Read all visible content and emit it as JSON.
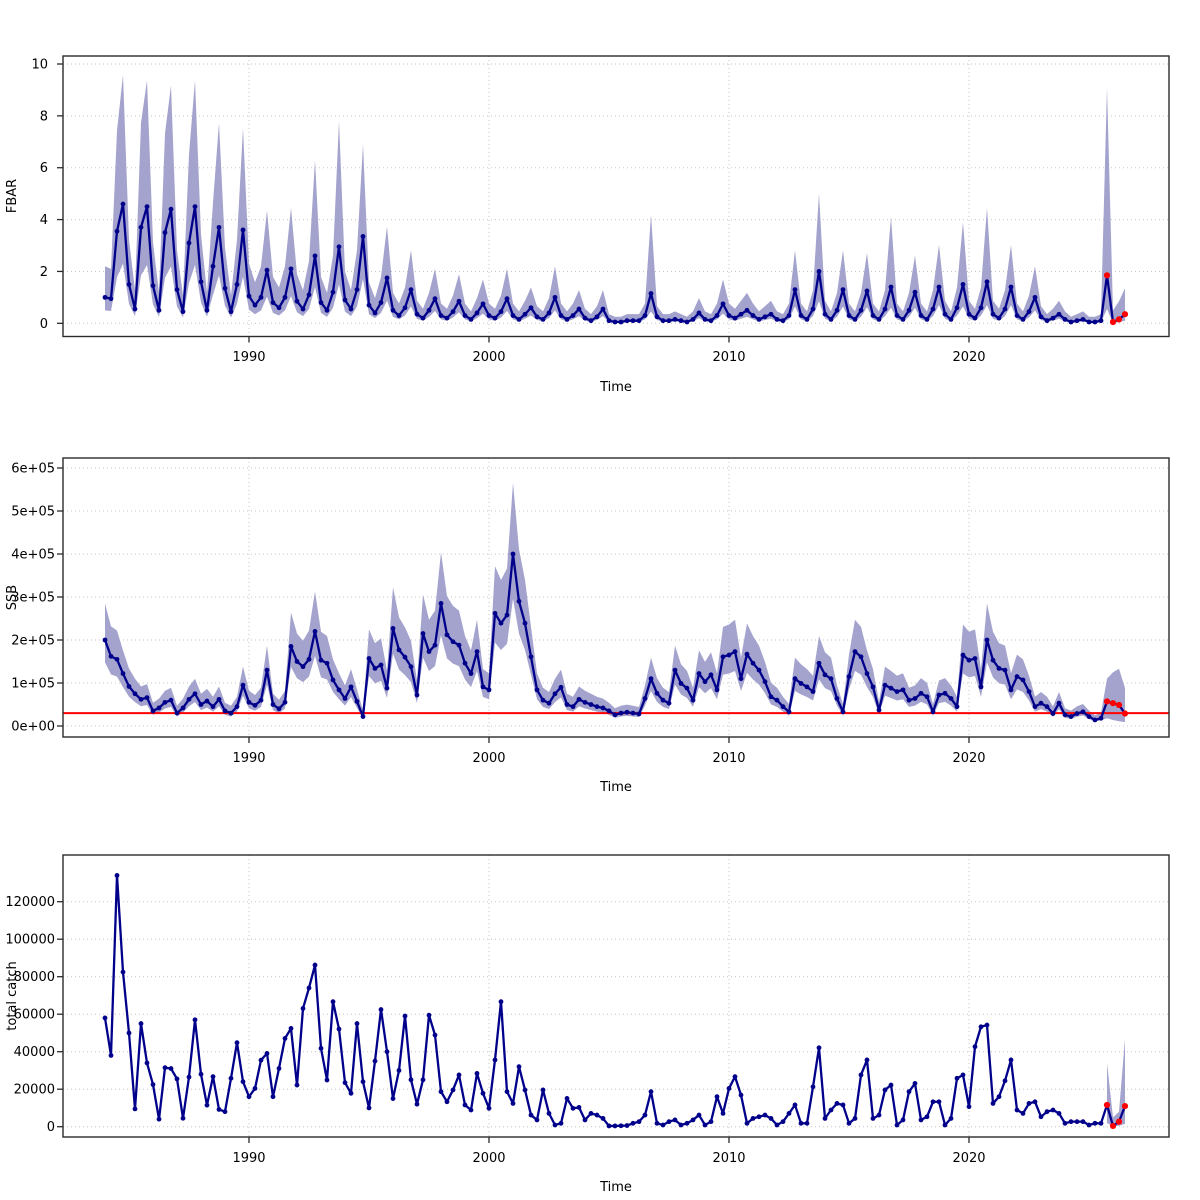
{
  "figure": {
    "background": "#FFFFFF",
    "grid_color": "#C4C4C4",
    "box_color": "#2B2B2B",
    "line_color": "#00008B",
    "band_color": "#A3A3CE",
    "forecast_color": "#FF0000",
    "ref_line_color": "#FF0000"
  },
  "time_axis": {
    "label": "Time",
    "ticks": [
      1990,
      2000,
      2010,
      2020
    ],
    "range": [
      1982.3,
      2028.6
    ]
  },
  "chart_data": [
    {
      "type": "line",
      "name": "fbar",
      "ylabel": "FBAR",
      "ylim": [
        0,
        10
      ],
      "yticks": {
        "values": [
          0,
          2,
          4,
          6,
          8,
          10
        ],
        "labels": [
          "0",
          "2",
          "4",
          "6",
          "8",
          "10"
        ]
      },
      "x_start": 1984.0,
      "x_step": 0.25,
      "values": [
        1.0,
        0.95,
        3.55,
        4.6,
        1.5,
        0.55,
        3.7,
        4.5,
        1.45,
        0.5,
        3.5,
        4.4,
        1.3,
        0.45,
        3.1,
        4.5,
        1.6,
        0.5,
        2.2,
        3.7,
        1.35,
        0.45,
        1.5,
        3.6,
        1.05,
        0.7,
        1.0,
        2.05,
        0.8,
        0.6,
        1.0,
        2.1,
        0.85,
        0.55,
        1.1,
        2.6,
        0.8,
        0.5,
        1.2,
        2.95,
        0.9,
        0.55,
        1.3,
        3.35,
        0.7,
        0.4,
        0.8,
        1.75,
        0.5,
        0.3,
        0.6,
        1.3,
        0.35,
        0.2,
        0.5,
        0.95,
        0.3,
        0.2,
        0.45,
        0.85,
        0.3,
        0.15,
        0.4,
        0.75,
        0.3,
        0.2,
        0.45,
        0.95,
        0.3,
        0.15,
        0.35,
        0.6,
        0.25,
        0.15,
        0.4,
        1.0,
        0.3,
        0.15,
        0.3,
        0.55,
        0.2,
        0.1,
        0.25,
        0.55,
        0.1,
        0.05,
        0.05,
        0.1,
        0.1,
        0.1,
        0.3,
        1.15,
        0.25,
        0.1,
        0.1,
        0.15,
        0.1,
        0.05,
        0.15,
        0.4,
        0.15,
        0.1,
        0.3,
        0.75,
        0.3,
        0.2,
        0.35,
        0.5,
        0.3,
        0.15,
        0.25,
        0.35,
        0.15,
        0.1,
        0.3,
        1.3,
        0.3,
        0.15,
        0.55,
        2.0,
        0.35,
        0.15,
        0.5,
        1.3,
        0.3,
        0.15,
        0.5,
        1.25,
        0.3,
        0.15,
        0.55,
        1.4,
        0.3,
        0.15,
        0.5,
        1.2,
        0.3,
        0.15,
        0.55,
        1.4,
        0.35,
        0.15,
        0.6,
        1.5,
        0.35,
        0.2,
        0.6,
        1.6,
        0.35,
        0.2,
        0.55,
        1.4,
        0.3,
        0.15,
        0.45,
        1.0,
        0.25,
        0.1,
        0.2,
        0.35,
        0.15,
        0.05,
        0.1,
        0.15,
        0.05,
        0.05,
        0.1,
        1.85,
        0.05,
        0.15,
        0.35
      ],
      "band_model": {
        "low_mult": 0.5,
        "high_mult": 2.05,
        "high_add": 0.15
      },
      "band_overrides": {
        "35": [
          1.4,
          6.3
        ],
        "39": [
          1.5,
          7.8
        ],
        "43": [
          1.7,
          6.9
        ],
        "91": [
          0.45,
          4.2
        ],
        "119": [
          0.85,
          5.0
        ],
        "131": [
          0.6,
          4.1
        ],
        "143": [
          0.65,
          3.9
        ],
        "147": [
          0.7,
          4.45
        ],
        "167": [
          0.55,
          9.1
        ],
        "168": [
          0.0,
          0.5
        ],
        "169": [
          0.05,
          0.85
        ],
        "170": [
          0.1,
          1.35
        ]
      },
      "forecast_start_index": 167,
      "ref_line_value": null
    },
    {
      "type": "line",
      "name": "ssb",
      "ylabel": "SSB",
      "ylim": [
        0,
        600000
      ],
      "yticks": {
        "values": [
          0,
          100000,
          200000,
          300000,
          400000,
          500000,
          600000
        ],
        "labels": [
          "0e+00",
          "1e+05",
          "2e+05",
          "3e+05",
          "4e+05",
          "5e+05",
          "6e+05"
        ]
      },
      "x_start": 1984.0,
      "x_step": 0.25,
      "values": [
        200000,
        162000,
        155000,
        122000,
        92000,
        75000,
        62000,
        66000,
        35000,
        42000,
        55000,
        60000,
        30000,
        42000,
        62000,
        75000,
        50000,
        58000,
        45000,
        62000,
        35000,
        30000,
        45000,
        95000,
        55000,
        48000,
        60000,
        130000,
        50000,
        40000,
        55000,
        185000,
        150000,
        138000,
        155000,
        220000,
        153000,
        146000,
        107000,
        84000,
        64000,
        91000,
        57000,
        22000,
        157000,
        134000,
        142000,
        88000,
        227000,
        177000,
        160000,
        138000,
        72000,
        215000,
        173000,
        188000,
        285000,
        212000,
        196000,
        188000,
        146000,
        122000,
        173000,
        91000,
        84000,
        262000,
        239000,
        258000,
        400000,
        290000,
        239000,
        161000,
        84000,
        60000,
        53000,
        75000,
        90000,
        50000,
        45000,
        62000,
        55000,
        50000,
        45000,
        42000,
        35000,
        26000,
        30000,
        32000,
        30000,
        28000,
        64000,
        110000,
        76000,
        60000,
        53000,
        130000,
        99000,
        88000,
        60000,
        122000,
        103000,
        119000,
        84000,
        161000,
        165000,
        173000,
        110000,
        167000,
        146000,
        130000,
        103000,
        68000,
        60000,
        45000,
        33000,
        110000,
        99000,
        91000,
        80000,
        146000,
        119000,
        110000,
        64000,
        33000,
        115000,
        173000,
        161000,
        122000,
        91000,
        37000,
        95000,
        88000,
        80000,
        84000,
        60000,
        64000,
        76000,
        68000,
        33000,
        72000,
        76000,
        64000,
        45000,
        165000,
        153000,
        157000,
        91000,
        200000,
        153000,
        134000,
        130000,
        84000,
        115000,
        107000,
        80000,
        45000,
        53000,
        45000,
        29000,
        53000,
        26000,
        22000,
        29000,
        33000,
        22000,
        14000,
        18000,
        57000,
        53000,
        49000,
        29000
      ],
      "band_model": {
        "low_mult": 0.74,
        "high_mult": 1.4,
        "high_add": 5000
      },
      "band_overrides": {
        "167": [
          18000,
          110000
        ],
        "168": [
          14000,
          125000
        ],
        "169": [
          11000,
          133000
        ],
        "170": [
          9000,
          88000
        ]
      },
      "forecast_start_index": 167,
      "ref_line_value": 30000
    },
    {
      "type": "line",
      "name": "total_catch",
      "ylabel": "total catch",
      "ylim": [
        0,
        140000
      ],
      "yticks": {
        "values": [
          0,
          20000,
          40000,
          60000,
          80000,
          100000,
          120000
        ],
        "labels": [
          "0",
          "20000",
          "40000",
          "60000",
          "80000",
          "100000",
          "120000"
        ]
      },
      "x_start": 1984.0,
      "x_step": 0.25,
      "values": [
        58000,
        38000,
        134000,
        82500,
        50000,
        9500,
        55000,
        34000,
        22500,
        4000,
        31500,
        31000,
        25500,
        4500,
        26500,
        57000,
        28000,
        11500,
        26700,
        9200,
        8000,
        25800,
        44800,
        24000,
        16000,
        20400,
        35500,
        39100,
        16000,
        31100,
        47100,
        52400,
        22200,
        63100,
        74000,
        86200,
        41800,
        24900,
        66700,
        52100,
        23500,
        17800,
        55000,
        24000,
        10000,
        35000,
        62500,
        40000,
        15000,
        30000,
        59000,
        25000,
        12000,
        25000,
        59500,
        48900,
        18700,
        13300,
        19600,
        27600,
        11600,
        8900,
        28400,
        17800,
        9800,
        35600,
        66700,
        18700,
        12400,
        32000,
        19600,
        6200,
        3600,
        19600,
        7100,
        900,
        1800,
        15100,
        9800,
        10300,
        3600,
        7100,
        6200,
        4400,
        400,
        400,
        500,
        600,
        1800,
        2700,
        6200,
        18700,
        1800,
        900,
        2700,
        3600,
        900,
        1800,
        3600,
        6200,
        900,
        2700,
        16000,
        7100,
        20400,
        26700,
        16900,
        1800,
        4400,
        5300,
        6200,
        4400,
        900,
        2700,
        7100,
        11600,
        1800,
        1800,
        21300,
        42100,
        4400,
        8900,
        12400,
        11600,
        1800,
        4400,
        27600,
        35600,
        4400,
        6200,
        19600,
        22200,
        900,
        3600,
        18700,
        23100,
        3600,
        5300,
        13300,
        13300,
        900,
        4400,
        25800,
        27600,
        10700,
        42700,
        53300,
        54200,
        12400,
        16000,
        24500,
        35600,
        8900,
        7100,
        12400,
        13300,
        5300,
        8000,
        8900,
        7100,
        1800,
        2700,
        2700,
        2700,
        900,
        1800,
        1800,
        11600,
        400,
        2700,
        11000
      ],
      "band_model": null,
      "band_overrides": {
        "167": [
          2000,
          34000
        ],
        "168": [
          200,
          5000
        ],
        "169": [
          500,
          8000
        ],
        "170": [
          1500,
          47000
        ]
      },
      "forecast_start_index": 167,
      "ref_line_value": null
    }
  ]
}
